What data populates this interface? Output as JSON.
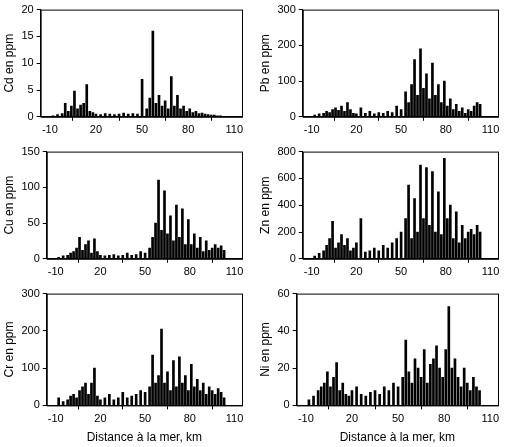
{
  "chart_data": [
    {
      "type": "bar",
      "y_label": "Cd en ppm",
      "color": "#000000",
      "grid": false,
      "x": [
        -8,
        -5,
        -2,
        0,
        2,
        4,
        6,
        8,
        10,
        12,
        14,
        16,
        18,
        20,
        23,
        26,
        29,
        32,
        35,
        38,
        41,
        44,
        47,
        50,
        53,
        55,
        57,
        59,
        61,
        63,
        65,
        67,
        69,
        71,
        73,
        75,
        77,
        79,
        81,
        83,
        85,
        87,
        89,
        91,
        93,
        95,
        97,
        99,
        101,
        103
      ],
      "values": [
        0.2,
        0.4,
        0.6,
        2.5,
        1,
        2,
        4.8,
        1.5,
        2.2,
        2.5,
        6,
        1,
        0.8,
        0.5,
        0.4,
        0.6,
        0.5,
        0.4,
        0.5,
        0.7,
        0.5,
        0.6,
        0.5,
        7,
        1.5,
        3.5,
        16,
        2.5,
        4,
        2,
        3,
        1.5,
        7.5,
        2,
        4,
        1.5,
        2,
        1,
        1.5,
        0.8,
        1,
        0.6,
        0.7,
        0.5,
        0.4,
        0.3,
        0.3,
        0.2,
        0.2,
        0.1
      ],
      "xlim": [
        -16,
        115
      ],
      "xticks": [
        -10,
        20,
        50,
        80,
        110
      ],
      "ylim": [
        0,
        20
      ],
      "yticks": [
        0,
        5,
        10,
        15,
        20
      ]
    },
    {
      "type": "bar",
      "y_label": "Pb en ppm",
      "color": "#000000",
      "grid": false,
      "x": [
        -8,
        -5,
        -2,
        0,
        2,
        4,
        6,
        8,
        10,
        12,
        14,
        16,
        18,
        20,
        23,
        26,
        29,
        32,
        35,
        38,
        41,
        44,
        47,
        50,
        53,
        55,
        57,
        59,
        61,
        63,
        65,
        67,
        69,
        71,
        73,
        75,
        77,
        79,
        81,
        83,
        85,
        87,
        89,
        91,
        93,
        95,
        97,
        99,
        101,
        103
      ],
      "values": [
        5,
        8,
        10,
        15,
        12,
        20,
        25,
        18,
        30,
        15,
        40,
        20,
        10,
        8,
        25,
        10,
        15,
        8,
        12,
        10,
        15,
        12,
        30,
        20,
        70,
        40,
        90,
        160,
        60,
        190,
        80,
        120,
        50,
        150,
        60,
        90,
        40,
        100,
        30,
        50,
        20,
        35,
        15,
        25,
        10,
        20,
        15,
        30,
        40,
        35
      ],
      "xlim": [
        -16,
        115
      ],
      "xticks": [
        -10,
        20,
        50,
        80,
        110
      ],
      "ylim": [
        0,
        300
      ],
      "yticks": [
        0,
        100,
        200,
        300
      ]
    },
    {
      "type": "bar",
      "y_label": "Cu en ppm",
      "color": "#000000",
      "grid": false,
      "x": [
        -8,
        -5,
        -2,
        0,
        2,
        4,
        6,
        8,
        10,
        12,
        14,
        16,
        18,
        20,
        23,
        26,
        29,
        32,
        35,
        38,
        41,
        44,
        47,
        50,
        53,
        55,
        57,
        59,
        61,
        63,
        65,
        67,
        69,
        71,
        73,
        75,
        77,
        79,
        81,
        83,
        85,
        87,
        89,
        91,
        93,
        95,
        97,
        99,
        101,
        103
      ],
      "values": [
        2,
        4,
        5,
        8,
        10,
        15,
        30,
        12,
        20,
        25,
        8,
        28,
        10,
        5,
        4,
        5,
        6,
        4,
        5,
        8,
        5,
        6,
        10,
        8,
        15,
        30,
        50,
        110,
        40,
        95,
        35,
        60,
        25,
        75,
        30,
        70,
        20,
        55,
        20,
        35,
        15,
        30,
        10,
        25,
        12,
        15,
        20,
        15,
        18,
        12
      ],
      "xlim": [
        -16,
        115
      ],
      "xticks": [
        -10,
        20,
        50,
        80,
        110
      ],
      "ylim": [
        0,
        150
      ],
      "yticks": [
        0,
        50,
        100,
        150
      ]
    },
    {
      "type": "bar",
      "y_label": "Zn en ppm",
      "color": "#000000",
      "grid": false,
      "x": [
        -8,
        -5,
        -2,
        0,
        2,
        4,
        6,
        8,
        10,
        12,
        14,
        16,
        18,
        20,
        23,
        26,
        29,
        32,
        35,
        38,
        41,
        44,
        47,
        50,
        53,
        55,
        57,
        59,
        61,
        63,
        65,
        67,
        69,
        71,
        73,
        75,
        77,
        79,
        81,
        83,
        85,
        87,
        89,
        91,
        93,
        95,
        97,
        99,
        101,
        103
      ],
      "values": [
        20,
        40,
        60,
        100,
        150,
        280,
        80,
        120,
        180,
        100,
        150,
        60,
        80,
        120,
        300,
        50,
        60,
        80,
        60,
        100,
        80,
        120,
        150,
        200,
        300,
        550,
        150,
        450,
        200,
        700,
        300,
        680,
        250,
        650,
        200,
        500,
        180,
        750,
        300,
        400,
        150,
        350,
        120,
        250,
        150,
        200,
        220,
        180,
        250,
        200
      ],
      "xlim": [
        -16,
        115
      ],
      "xticks": [
        -10,
        20,
        50,
        80,
        110
      ],
      "ylim": [
        0,
        800
      ],
      "yticks": [
        0,
        200,
        400,
        600,
        800
      ]
    },
    {
      "type": "bar",
      "y_label": "Cr en ppm",
      "x_label": "Distance à la mer, km",
      "color": "#000000",
      "grid": false,
      "x": [
        -8,
        -5,
        -2,
        0,
        2,
        4,
        6,
        8,
        10,
        12,
        14,
        16,
        18,
        20,
        23,
        26,
        29,
        32,
        35,
        38,
        41,
        44,
        47,
        50,
        53,
        55,
        57,
        59,
        61,
        63,
        65,
        67,
        69,
        71,
        73,
        75,
        77,
        79,
        81,
        83,
        85,
        87,
        89,
        91,
        93,
        95,
        97,
        99,
        101,
        103
      ],
      "values": [
        20,
        10,
        15,
        25,
        30,
        20,
        40,
        50,
        60,
        30,
        60,
        100,
        25,
        15,
        20,
        30,
        15,
        20,
        35,
        20,
        25,
        30,
        40,
        35,
        50,
        135,
        60,
        80,
        205,
        60,
        90,
        40,
        120,
        50,
        130,
        60,
        80,
        40,
        110,
        50,
        70,
        40,
        60,
        30,
        50,
        40,
        30,
        45,
        35,
        20
      ],
      "xlim": [
        -16,
        115
      ],
      "xticks": [
        -10,
        20,
        50,
        80,
        110
      ],
      "ylim": [
        0,
        300
      ],
      "yticks": [
        0,
        100,
        200,
        300
      ]
    },
    {
      "type": "bar",
      "y_label": "Ni en ppm",
      "x_label": "Distance à la mer, km",
      "color": "#000000",
      "grid": false,
      "x": [
        -8,
        -5,
        -2,
        0,
        2,
        4,
        6,
        8,
        10,
        12,
        14,
        16,
        18,
        20,
        23,
        26,
        29,
        32,
        35,
        38,
        41,
        44,
        47,
        50,
        53,
        55,
        57,
        59,
        61,
        63,
        65,
        67,
        69,
        71,
        73,
        75,
        77,
        79,
        81,
        83,
        85,
        87,
        89,
        91,
        93,
        95,
        97,
        99,
        101,
        103
      ],
      "values": [
        3,
        5,
        8,
        10,
        12,
        18,
        10,
        15,
        23,
        8,
        12,
        6,
        5,
        8,
        10,
        6,
        5,
        7,
        8,
        6,
        10,
        8,
        12,
        10,
        15,
        35,
        18,
        12,
        25,
        20,
        15,
        30,
        12,
        22,
        25,
        32,
        20,
        15,
        30,
        53,
        20,
        25,
        15,
        10,
        20,
        12,
        8,
        15,
        10,
        8
      ],
      "xlim": [
        -16,
        115
      ],
      "xticks": [
        -10,
        20,
        50,
        80,
        110
      ],
      "ylim": [
        0,
        60
      ],
      "yticks": [
        0,
        20,
        40,
        60
      ]
    }
  ]
}
